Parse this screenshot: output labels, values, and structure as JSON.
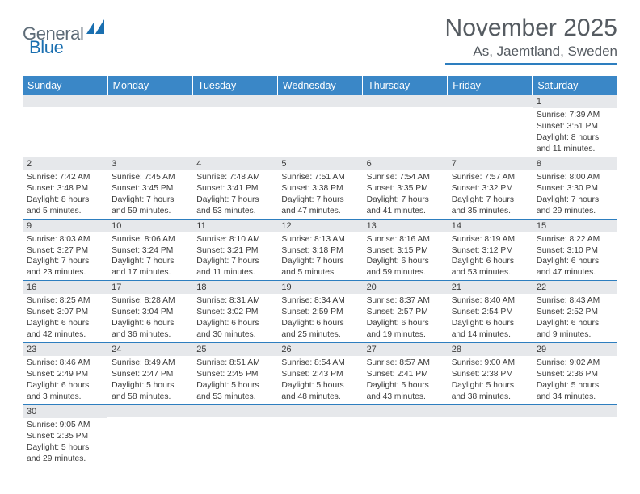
{
  "logo": {
    "part1": "General",
    "part2": "Blue"
  },
  "title": "November 2025",
  "location": "As, Jaemtland, Sweden",
  "colors": {
    "header_bg": "#3a87c7",
    "header_text": "#ffffff",
    "daynum_bg": "#e6e8eb",
    "border": "#2d7ebf",
    "title_color": "#555b61",
    "logo_dark": "#5d6b77",
    "logo_blue": "#1a6fb0"
  },
  "typography": {
    "title_fontsize": 30,
    "location_fontsize": 17,
    "dayheader_fontsize": 12.5,
    "daynum_fontsize": 11,
    "content_fontsize": 10.3
  },
  "day_headers": [
    "Sunday",
    "Monday",
    "Tuesday",
    "Wednesday",
    "Thursday",
    "Friday",
    "Saturday"
  ],
  "weeks": [
    [
      {
        "n": "",
        "sr": "",
        "ss": "",
        "dl": ""
      },
      {
        "n": "",
        "sr": "",
        "ss": "",
        "dl": ""
      },
      {
        "n": "",
        "sr": "",
        "ss": "",
        "dl": ""
      },
      {
        "n": "",
        "sr": "",
        "ss": "",
        "dl": ""
      },
      {
        "n": "",
        "sr": "",
        "ss": "",
        "dl": ""
      },
      {
        "n": "",
        "sr": "",
        "ss": "",
        "dl": ""
      },
      {
        "n": "1",
        "sr": "Sunrise: 7:39 AM",
        "ss": "Sunset: 3:51 PM",
        "dl": "Daylight: 8 hours and 11 minutes."
      }
    ],
    [
      {
        "n": "2",
        "sr": "Sunrise: 7:42 AM",
        "ss": "Sunset: 3:48 PM",
        "dl": "Daylight: 8 hours and 5 minutes."
      },
      {
        "n": "3",
        "sr": "Sunrise: 7:45 AM",
        "ss": "Sunset: 3:45 PM",
        "dl": "Daylight: 7 hours and 59 minutes."
      },
      {
        "n": "4",
        "sr": "Sunrise: 7:48 AM",
        "ss": "Sunset: 3:41 PM",
        "dl": "Daylight: 7 hours and 53 minutes."
      },
      {
        "n": "5",
        "sr": "Sunrise: 7:51 AM",
        "ss": "Sunset: 3:38 PM",
        "dl": "Daylight: 7 hours and 47 minutes."
      },
      {
        "n": "6",
        "sr": "Sunrise: 7:54 AM",
        "ss": "Sunset: 3:35 PM",
        "dl": "Daylight: 7 hours and 41 minutes."
      },
      {
        "n": "7",
        "sr": "Sunrise: 7:57 AM",
        "ss": "Sunset: 3:32 PM",
        "dl": "Daylight: 7 hours and 35 minutes."
      },
      {
        "n": "8",
        "sr": "Sunrise: 8:00 AM",
        "ss": "Sunset: 3:30 PM",
        "dl": "Daylight: 7 hours and 29 minutes."
      }
    ],
    [
      {
        "n": "9",
        "sr": "Sunrise: 8:03 AM",
        "ss": "Sunset: 3:27 PM",
        "dl": "Daylight: 7 hours and 23 minutes."
      },
      {
        "n": "10",
        "sr": "Sunrise: 8:06 AM",
        "ss": "Sunset: 3:24 PM",
        "dl": "Daylight: 7 hours and 17 minutes."
      },
      {
        "n": "11",
        "sr": "Sunrise: 8:10 AM",
        "ss": "Sunset: 3:21 PM",
        "dl": "Daylight: 7 hours and 11 minutes."
      },
      {
        "n": "12",
        "sr": "Sunrise: 8:13 AM",
        "ss": "Sunset: 3:18 PM",
        "dl": "Daylight: 7 hours and 5 minutes."
      },
      {
        "n": "13",
        "sr": "Sunrise: 8:16 AM",
        "ss": "Sunset: 3:15 PM",
        "dl": "Daylight: 6 hours and 59 minutes."
      },
      {
        "n": "14",
        "sr": "Sunrise: 8:19 AM",
        "ss": "Sunset: 3:12 PM",
        "dl": "Daylight: 6 hours and 53 minutes."
      },
      {
        "n": "15",
        "sr": "Sunrise: 8:22 AM",
        "ss": "Sunset: 3:10 PM",
        "dl": "Daylight: 6 hours and 47 minutes."
      }
    ],
    [
      {
        "n": "16",
        "sr": "Sunrise: 8:25 AM",
        "ss": "Sunset: 3:07 PM",
        "dl": "Daylight: 6 hours and 42 minutes."
      },
      {
        "n": "17",
        "sr": "Sunrise: 8:28 AM",
        "ss": "Sunset: 3:04 PM",
        "dl": "Daylight: 6 hours and 36 minutes."
      },
      {
        "n": "18",
        "sr": "Sunrise: 8:31 AM",
        "ss": "Sunset: 3:02 PM",
        "dl": "Daylight: 6 hours and 30 minutes."
      },
      {
        "n": "19",
        "sr": "Sunrise: 8:34 AM",
        "ss": "Sunset: 2:59 PM",
        "dl": "Daylight: 6 hours and 25 minutes."
      },
      {
        "n": "20",
        "sr": "Sunrise: 8:37 AM",
        "ss": "Sunset: 2:57 PM",
        "dl": "Daylight: 6 hours and 19 minutes."
      },
      {
        "n": "21",
        "sr": "Sunrise: 8:40 AM",
        "ss": "Sunset: 2:54 PM",
        "dl": "Daylight: 6 hours and 14 minutes."
      },
      {
        "n": "22",
        "sr": "Sunrise: 8:43 AM",
        "ss": "Sunset: 2:52 PM",
        "dl": "Daylight: 6 hours and 9 minutes."
      }
    ],
    [
      {
        "n": "23",
        "sr": "Sunrise: 8:46 AM",
        "ss": "Sunset: 2:49 PM",
        "dl": "Daylight: 6 hours and 3 minutes."
      },
      {
        "n": "24",
        "sr": "Sunrise: 8:49 AM",
        "ss": "Sunset: 2:47 PM",
        "dl": "Daylight: 5 hours and 58 minutes."
      },
      {
        "n": "25",
        "sr": "Sunrise: 8:51 AM",
        "ss": "Sunset: 2:45 PM",
        "dl": "Daylight: 5 hours and 53 minutes."
      },
      {
        "n": "26",
        "sr": "Sunrise: 8:54 AM",
        "ss": "Sunset: 2:43 PM",
        "dl": "Daylight: 5 hours and 48 minutes."
      },
      {
        "n": "27",
        "sr": "Sunrise: 8:57 AM",
        "ss": "Sunset: 2:41 PM",
        "dl": "Daylight: 5 hours and 43 minutes."
      },
      {
        "n": "28",
        "sr": "Sunrise: 9:00 AM",
        "ss": "Sunset: 2:38 PM",
        "dl": "Daylight: 5 hours and 38 minutes."
      },
      {
        "n": "29",
        "sr": "Sunrise: 9:02 AM",
        "ss": "Sunset: 2:36 PM",
        "dl": "Daylight: 5 hours and 34 minutes."
      }
    ],
    [
      {
        "n": "30",
        "sr": "Sunrise: 9:05 AM",
        "ss": "Sunset: 2:35 PM",
        "dl": "Daylight: 5 hours and 29 minutes."
      },
      {
        "n": "",
        "sr": "",
        "ss": "",
        "dl": ""
      },
      {
        "n": "",
        "sr": "",
        "ss": "",
        "dl": ""
      },
      {
        "n": "",
        "sr": "",
        "ss": "",
        "dl": ""
      },
      {
        "n": "",
        "sr": "",
        "ss": "",
        "dl": ""
      },
      {
        "n": "",
        "sr": "",
        "ss": "",
        "dl": ""
      },
      {
        "n": "",
        "sr": "",
        "ss": "",
        "dl": ""
      }
    ]
  ]
}
